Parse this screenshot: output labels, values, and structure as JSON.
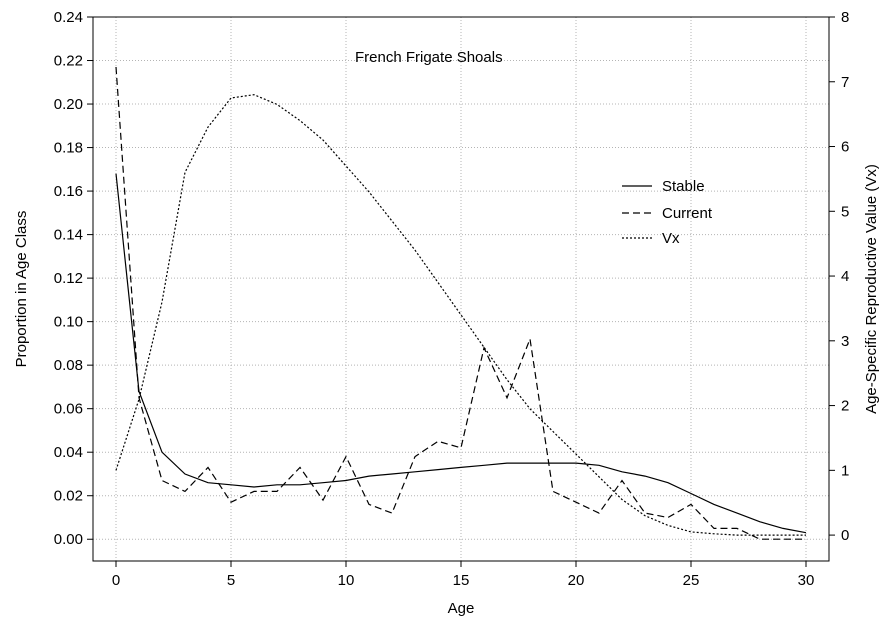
{
  "chart_data": {
    "type": "line",
    "title": "French Frigate Shoals",
    "xlabel": "Age",
    "ylabel": "Proportion in Age Class",
    "y2label": "Age-Specific Reproductive Value (Vx)",
    "xlim": [
      -1,
      31
    ],
    "ylim": [
      -0.01,
      0.24
    ],
    "y2lim": [
      -0.4,
      8
    ],
    "x_ticks": [
      "0",
      "5",
      "10",
      "15",
      "20",
      "25",
      "30"
    ],
    "y_ticks": [
      "0.00",
      "0.02",
      "0.04",
      "0.06",
      "0.08",
      "0.10",
      "0.12",
      "0.14",
      "0.16",
      "0.18",
      "0.20",
      "0.22",
      "0.24"
    ],
    "y2_ticks": [
      "0",
      "1",
      "2",
      "3",
      "4",
      "5",
      "6",
      "7",
      "8"
    ],
    "grid": true,
    "legend_position": "right",
    "x": [
      0,
      1,
      2,
      3,
      4,
      5,
      6,
      7,
      8,
      9,
      10,
      11,
      12,
      13,
      14,
      15,
      16,
      17,
      18,
      19,
      20,
      21,
      22,
      23,
      24,
      25,
      26,
      27,
      28,
      29,
      30
    ],
    "series": [
      {
        "name": "Stable",
        "axis": "left",
        "style": "solid",
        "values": [
          0.168,
          0.068,
          0.04,
          0.03,
          0.026,
          0.025,
          0.024,
          0.025,
          0.025,
          0.026,
          0.027,
          0.029,
          0.03,
          0.031,
          0.032,
          0.033,
          0.034,
          0.035,
          0.035,
          0.035,
          0.035,
          0.034,
          0.031,
          0.029,
          0.026,
          0.021,
          0.016,
          0.012,
          0.008,
          0.005,
          0.003
        ]
      },
      {
        "name": "Current",
        "axis": "left",
        "style": "dashed",
        "values": [
          0.217,
          0.065,
          0.027,
          0.022,
          0.033,
          0.017,
          0.022,
          0.022,
          0.033,
          0.018,
          0.038,
          0.016,
          0.012,
          0.038,
          0.045,
          0.042,
          0.088,
          0.065,
          0.092,
          0.022,
          0.017,
          0.012,
          0.027,
          0.012,
          0.01,
          0.016,
          0.005,
          0.005,
          0.0,
          0.0,
          0.0
        ]
      },
      {
        "name": "Vx",
        "axis": "right",
        "style": "dotted",
        "values": [
          1.0,
          2.1,
          3.6,
          5.6,
          6.3,
          6.75,
          6.8,
          6.65,
          6.4,
          6.1,
          5.7,
          5.3,
          4.85,
          4.4,
          3.9,
          3.4,
          2.9,
          2.4,
          1.95,
          1.6,
          1.25,
          0.9,
          0.55,
          0.3,
          0.15,
          0.05,
          0.02,
          0.0,
          0.0,
          0.0,
          0.0
        ]
      }
    ]
  }
}
